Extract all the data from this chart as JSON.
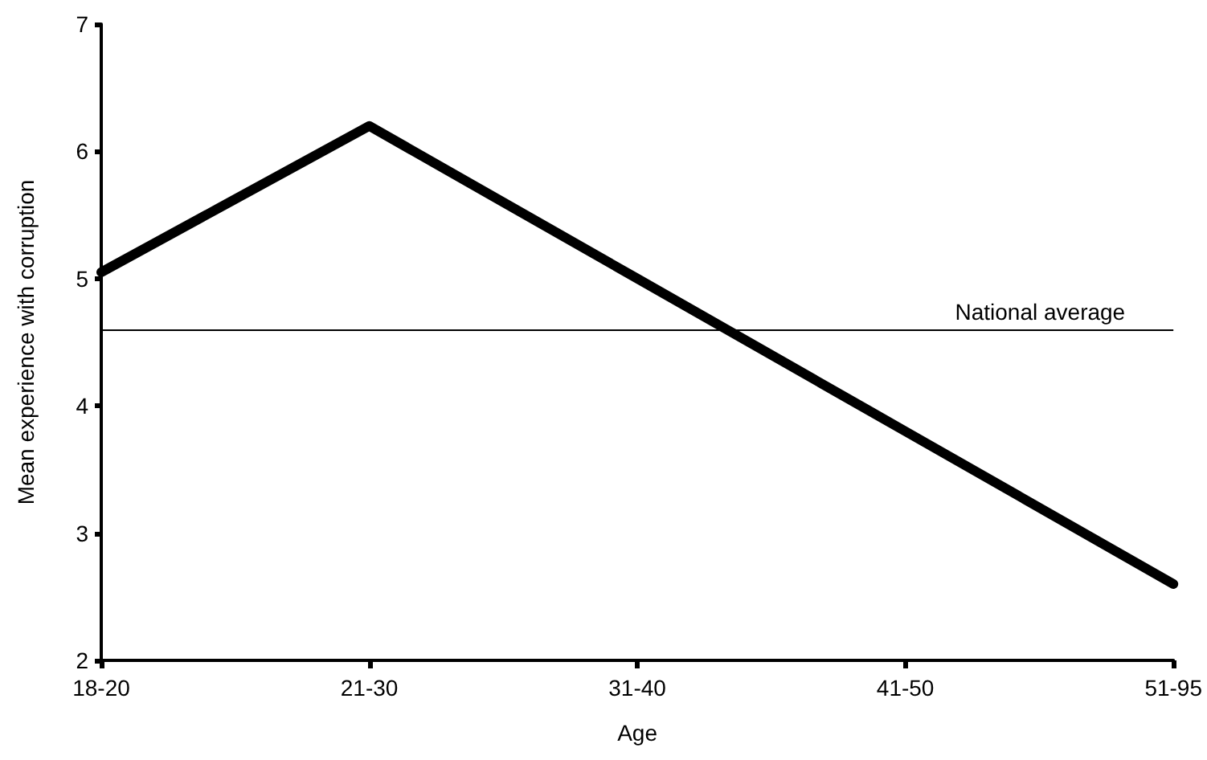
{
  "chart_data": {
    "type": "line",
    "xlabel": "Age",
    "ylabel": "Mean experience with corruption",
    "categories": [
      "18-20",
      "21-30",
      "31-40",
      "41-50",
      "51-95"
    ],
    "series": [
      {
        "color": "#000000",
        "values": [
          5.05,
          6.2,
          5.0,
          3.8,
          2.6
        ]
      }
    ],
    "ylim": [
      2,
      7
    ],
    "yticks": [
      2,
      3,
      4,
      5,
      6,
      7
    ],
    "grid": false,
    "marker": "none",
    "line_style": "solid",
    "ref_lines": [
      {
        "axis": "y",
        "value": 4.6,
        "label": "National average",
        "color": "#000000"
      }
    ]
  }
}
